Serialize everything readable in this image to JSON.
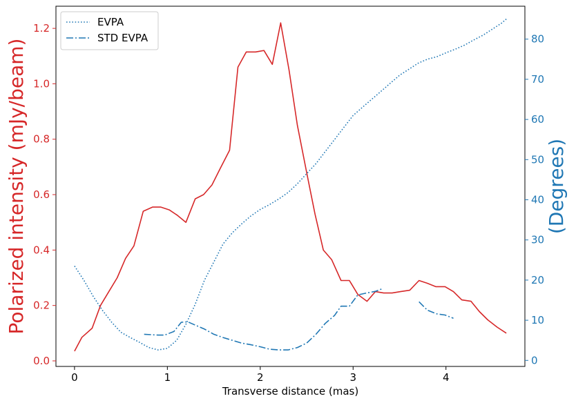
{
  "chart_data": {
    "type": "line",
    "xlabel": "Transverse distance (mas)",
    "ylabel_left": "Polarized intensity (mJy/beam)",
    "ylabel_right": "(Degrees)",
    "xlim": [
      -0.2,
      4.85
    ],
    "ylim_left": [
      -0.02,
      1.28
    ],
    "ylim_right": [
      -1.5,
      88.2
    ],
    "x_ticks": [
      0,
      1,
      2,
      3,
      4
    ],
    "y_ticks_left": [
      0.0,
      0.2,
      0.4,
      0.6,
      0.8,
      1.0,
      1.2
    ],
    "y_ticks_right": [
      0,
      10,
      20,
      30,
      40,
      50,
      60,
      70,
      80
    ],
    "grid": false,
    "legend_position": "upper-left",
    "colors": {
      "intensity": "#d62728",
      "evpa": "#1f77b4"
    },
    "series": [
      {
        "key": "intensity",
        "axis": "left",
        "style": "solid",
        "x": [
          0.0,
          0.08,
          0.19,
          0.28,
          0.37,
          0.46,
          0.55,
          0.64,
          0.74,
          0.84,
          0.93,
          1.02,
          1.11,
          1.2,
          1.3,
          1.39,
          1.48,
          1.57,
          1.67,
          1.76,
          1.85,
          1.95,
          2.04,
          2.13,
          2.22,
          2.31,
          2.4,
          2.5,
          2.59,
          2.68,
          2.77,
          2.87,
          2.96,
          3.05,
          3.15,
          3.24,
          3.33,
          3.42,
          3.51,
          3.61,
          3.71,
          3.8,
          3.89,
          3.99,
          4.08,
          4.17,
          4.27,
          4.36,
          4.45,
          4.55,
          4.65
        ],
        "y": [
          0.035,
          0.085,
          0.118,
          0.2,
          0.25,
          0.3,
          0.37,
          0.415,
          0.54,
          0.555,
          0.555,
          0.545,
          0.525,
          0.5,
          0.585,
          0.6,
          0.635,
          0.695,
          0.76,
          1.06,
          1.115,
          1.115,
          1.12,
          1.07,
          1.22,
          1.05,
          0.85,
          0.68,
          0.53,
          0.4,
          0.365,
          0.29,
          0.29,
          0.24,
          0.215,
          0.25,
          0.245,
          0.245,
          0.25,
          0.255,
          0.29,
          0.28,
          0.268,
          0.268,
          0.25,
          0.22,
          0.215,
          0.178,
          0.148,
          0.122,
          0.1
        ]
      },
      {
        "key": "evpa",
        "name": "EVPA",
        "axis": "right",
        "style": "dotted",
        "x": [
          0.0,
          0.1,
          0.2,
          0.3,
          0.4,
          0.5,
          0.6,
          0.7,
          0.8,
          0.9,
          1.0,
          1.1,
          1.2,
          1.3,
          1.4,
          1.5,
          1.6,
          1.7,
          1.8,
          1.9,
          2.0,
          2.1,
          2.2,
          2.3,
          2.4,
          2.5,
          2.6,
          2.7,
          2.8,
          2.9,
          3.0,
          3.1,
          3.2,
          3.3,
          3.4,
          3.5,
          3.6,
          3.7,
          3.8,
          3.9,
          4.0,
          4.1,
          4.2,
          4.3,
          4.4,
          4.5,
          4.6,
          4.65
        ],
        "y": [
          23.5,
          20,
          16,
          12.5,
          9.5,
          7,
          5.7,
          4.5,
          3.2,
          2.6,
          3,
          5,
          9,
          14,
          20,
          24.5,
          29,
          31.8,
          34,
          36,
          37.6,
          38.8,
          40.2,
          41.8,
          44,
          46.5,
          49,
          52,
          55,
          58,
          61,
          63,
          65,
          67,
          69,
          71,
          72.5,
          74,
          75,
          75.6,
          76.6,
          77.5,
          78.5,
          79.8,
          81,
          82.5,
          84,
          85
        ]
      },
      {
        "key": "std_evpa",
        "name": "STD EVPA",
        "axis": "right",
        "style": "dashdot",
        "segments": [
          {
            "x": [
              0.75,
              0.9,
              0.97,
              1.07,
              1.15,
              1.22,
              1.3,
              1.4,
              1.5,
              1.6,
              1.7,
              1.8,
              1.9,
              2.0,
              2.1,
              2.2,
              2.3,
              2.4,
              2.5,
              2.6,
              2.7,
              2.8,
              2.87,
              2.96,
              3.05,
              3.15,
              3.24,
              3.32
            ],
            "y": [
              6.5,
              6.3,
              6.3,
              7.2,
              9.5,
              9.6,
              8.8,
              7.8,
              6.5,
              5.7,
              5,
              4.3,
              3.9,
              3.4,
              2.8,
              2.6,
              2.6,
              3.2,
              4.3,
              6.5,
              9.2,
              11.2,
              13.5,
              13.5,
              16.3,
              16.8,
              17.2,
              17.9
            ]
          },
          {
            "x": [
              3.71,
              3.8,
              3.9,
              3.99,
              4.08
            ],
            "y": [
              14.6,
              12.5,
              11.6,
              11.3,
              10.5
            ]
          }
        ]
      }
    ]
  }
}
